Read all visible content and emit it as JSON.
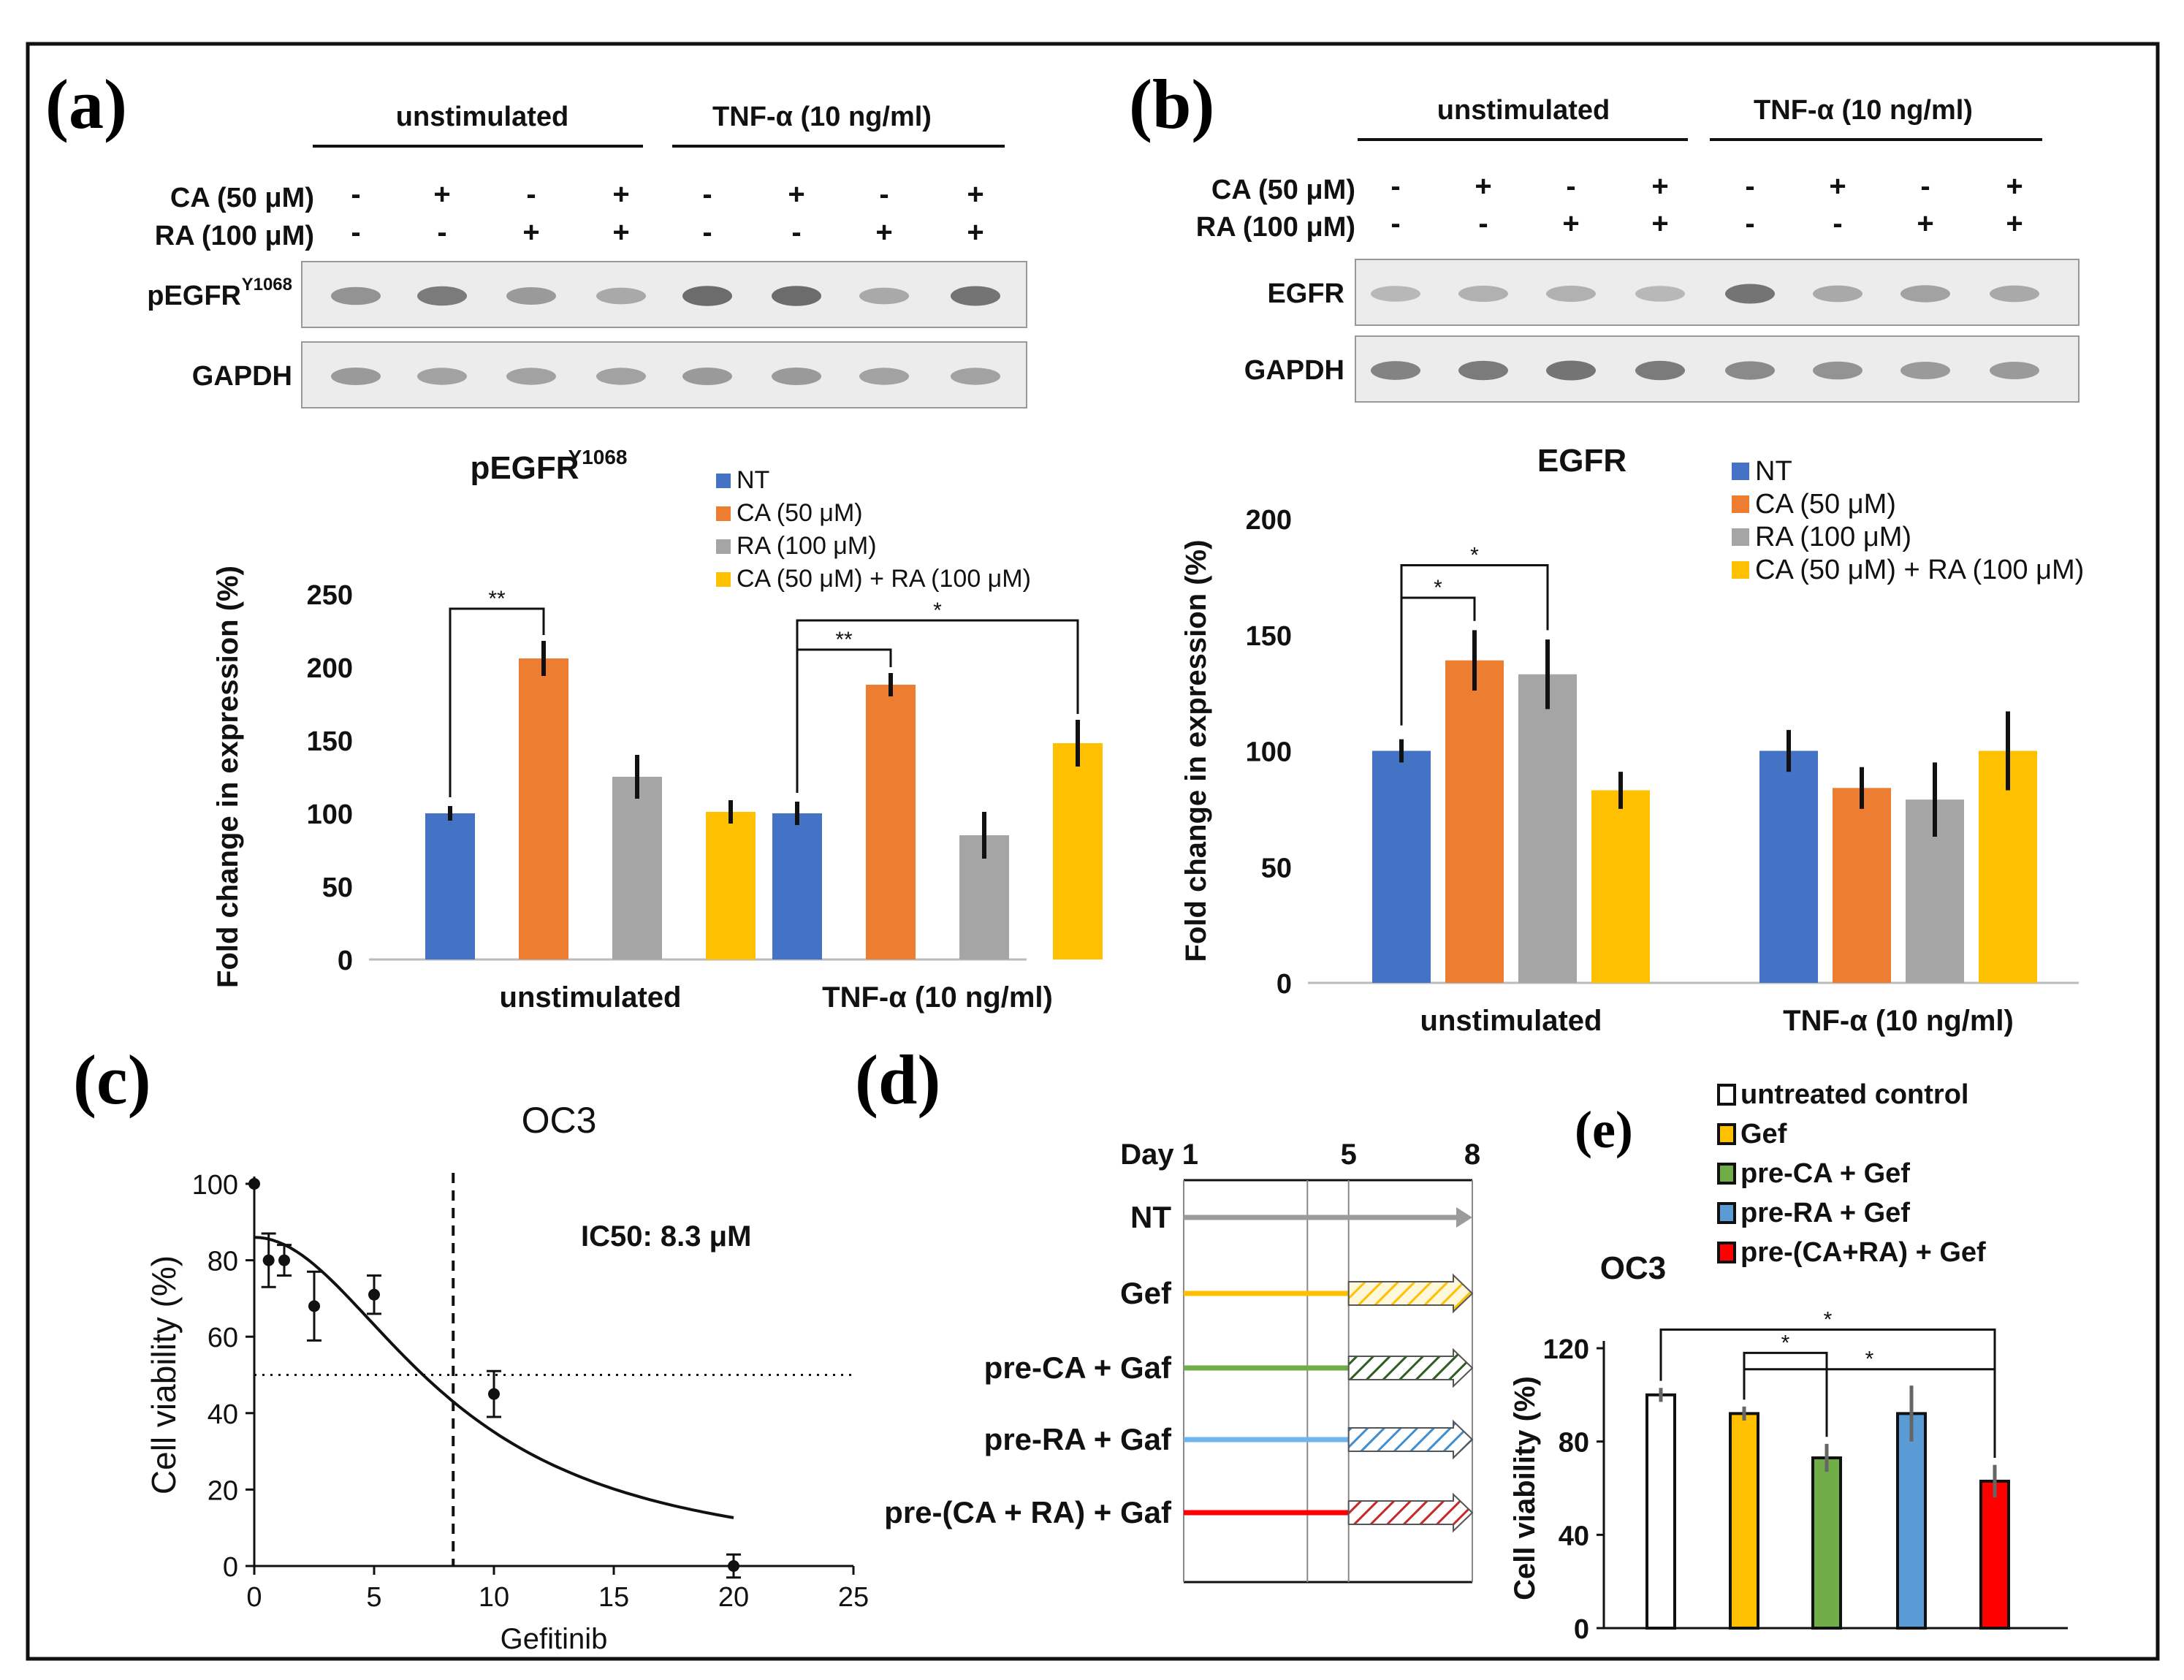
{
  "colors": {
    "NT": "#4472c4",
    "CA": "#ed7d31",
    "RA": "#a5a5a5",
    "CARA": "#ffc000",
    "timeline_NT": "#9b9b9b",
    "timeline_Gef": "#ffc000",
    "timeline_preCA": "#70ad47",
    "timeline_preRA": "#6fb6f0",
    "timeline_preCARA": "#ff0000",
    "e_untreated": "#ffffff",
    "e_gef": "#ffc000",
    "e_preCA": "#70ad47",
    "e_preRA": "#5b9bd5",
    "e_preCARA": "#ff0000"
  },
  "panel_a": {
    "label": "(a)",
    "groups": [
      "unstimulated",
      "TNF-α (10 ng/ml)"
    ],
    "treatments": [
      {
        "name": "CA (50 μM)",
        "signs": [
          "-",
          "+",
          "-",
          "+",
          "-",
          "+",
          "-",
          "+"
        ]
      },
      {
        "name": "RA (100 μM)",
        "signs": [
          "-",
          "-",
          "+",
          "+",
          "-",
          "-",
          "+",
          "+"
        ]
      }
    ],
    "blots": [
      {
        "name": "pEGFR",
        "sup": "Y1068",
        "intensities": [
          0.55,
          0.7,
          0.5,
          0.4,
          0.8,
          0.8,
          0.4,
          0.75
        ]
      },
      {
        "name": "GAPDH",
        "sup": "",
        "intensities": [
          0.5,
          0.45,
          0.45,
          0.45,
          0.5,
          0.5,
          0.45,
          0.45
        ]
      }
    ]
  },
  "panel_b": {
    "label": "(b)",
    "groups": [
      "unstimulated",
      "TNF-α (10 ng/ml)"
    ],
    "treatments": [
      {
        "name": "CA (50 μM)",
        "signs": [
          "-",
          "+",
          "-",
          "+",
          "-",
          "+",
          "-",
          "+"
        ]
      },
      {
        "name": "RA (100 μM)",
        "signs": [
          "-",
          "-",
          "+",
          "+",
          "-",
          "-",
          "+",
          "+"
        ]
      }
    ],
    "blots": [
      {
        "name": "EGFR",
        "sup": "",
        "intensities": [
          0.3,
          0.35,
          0.35,
          0.3,
          0.75,
          0.4,
          0.45,
          0.4
        ]
      },
      {
        "name": "GAPDH",
        "sup": "",
        "intensities": [
          0.65,
          0.7,
          0.75,
          0.7,
          0.6,
          0.55,
          0.5,
          0.5
        ]
      }
    ]
  },
  "legend_ab": [
    "NT",
    "CA (50 μM)",
    "RA (100 μM)",
    "CA (50 μM) + RA (100 μM)"
  ],
  "chart_data": [
    {
      "id": "a",
      "type": "bar",
      "title": "pEGFR",
      "title_sup": "Y1068",
      "ylabel": "Fold change in expression (%)",
      "xlabel": "",
      "categories": [
        "unstimulated",
        "TNF-α (10 ng/ml)"
      ],
      "ylim": [
        0,
        250
      ],
      "yticks": [
        0,
        50,
        100,
        150,
        200,
        250
      ],
      "series": [
        {
          "name": "NT",
          "values": [
            100,
            100
          ],
          "errors": [
            5,
            8
          ]
        },
        {
          "name": "CA (50 μM)",
          "values": [
            206,
            188
          ],
          "errors": [
            12,
            8
          ]
        },
        {
          "name": "RA (100 μM)",
          "values": [
            125,
            85
          ],
          "errors": [
            15,
            16
          ]
        },
        {
          "name": "CA (50 μM) + RA (100 μM)",
          "values": [
            101,
            148
          ],
          "errors": [
            8,
            16
          ]
        }
      ],
      "significance": [
        {
          "group": 0,
          "from": 0,
          "to": 1,
          "label": "**",
          "y": 240
        },
        {
          "group": 1,
          "from": 0,
          "to": 1,
          "label": "**",
          "y": 212
        },
        {
          "group": 1,
          "from": 0,
          "to": 3,
          "label": "*",
          "y": 232
        }
      ]
    },
    {
      "id": "b",
      "type": "bar",
      "title": "EGFR",
      "ylabel": "Fold change in expression (%)",
      "xlabel": "",
      "categories": [
        "unstimulated",
        "TNF-α (10 ng/ml)"
      ],
      "ylim": [
        0,
        200
      ],
      "yticks": [
        0,
        50,
        100,
        150,
        200
      ],
      "series": [
        {
          "name": "NT",
          "values": [
            100,
            100
          ],
          "errors": [
            5,
            9
          ]
        },
        {
          "name": "CA (50 μM)",
          "values": [
            139,
            84
          ],
          "errors": [
            13,
            9
          ]
        },
        {
          "name": "RA (100 μM)",
          "values": [
            133,
            79
          ],
          "errors": [
            15,
            16
          ]
        },
        {
          "name": "CA (50 μM) + RA (100 μM)",
          "values": [
            83,
            100
          ],
          "errors": [
            8,
            17
          ]
        }
      ],
      "significance": [
        {
          "group": 0,
          "from": 0,
          "to": 1,
          "label": "*",
          "y": 166
        },
        {
          "group": 0,
          "from": 0,
          "to": 2,
          "label": "*",
          "y": 180
        }
      ]
    },
    {
      "id": "c",
      "type": "scatter",
      "title": "OC3",
      "xlabel": "Gefitinib",
      "ylabel": "Cell viability (%)",
      "xlim": [
        0,
        25
      ],
      "ylim": [
        0,
        100
      ],
      "xticks": [
        0,
        5,
        10,
        15,
        20,
        25
      ],
      "yticks": [
        0,
        20,
        40,
        60,
        80,
        100
      ],
      "points": [
        {
          "x": 0,
          "y": 100,
          "err": 0
        },
        {
          "x": 0.6,
          "y": 80,
          "err": 7
        },
        {
          "x": 1.25,
          "y": 80,
          "err": 4
        },
        {
          "x": 2.5,
          "y": 68,
          "err": 9
        },
        {
          "x": 5,
          "y": 71,
          "err": 5
        },
        {
          "x": 10,
          "y": 45,
          "err": 6
        },
        {
          "x": 20,
          "y": 0,
          "err": 3
        }
      ],
      "fit": {
        "top": 86,
        "bottom": 0,
        "ic50": 8.3,
        "hill": 2.0,
        "x_end": 20
      },
      "ic50_line": 8.3,
      "half_line": 50,
      "annotation": "IC50: 8.3 μM"
    },
    {
      "id": "e",
      "type": "bar",
      "title": "OC3",
      "ylabel": "Cell viability (%)",
      "xlabel": "",
      "categories": [
        "untreated control",
        "Gef",
        "pre-CA + Gef",
        "pre-RA + Gef",
        "pre-(CA+RA) + Gef"
      ],
      "ylim": [
        0,
        120
      ],
      "yticks": [
        0,
        40,
        80,
        120
      ],
      "values": [
        100,
        92,
        73,
        92,
        63
      ],
      "errors": [
        3,
        3,
        6,
        12,
        7
      ],
      "significance": [
        {
          "from": 0,
          "to": 4,
          "label": "*",
          "y": 128
        },
        {
          "from": 1,
          "to": 2,
          "label": "*",
          "y": 118
        },
        {
          "from": 1,
          "to": 4,
          "label": "*",
          "y": 111
        }
      ]
    }
  ],
  "panel_c": {
    "label": "(c)"
  },
  "panel_d": {
    "label": "(d)",
    "day_labels": [
      "Day 1",
      "5",
      "8"
    ],
    "day_positions": [
      1,
      5,
      8
    ],
    "rows": [
      {
        "label": "NT",
        "color_key": "timeline_NT",
        "hatched": false
      },
      {
        "label": "Gef",
        "color_key": "timeline_Gef",
        "hatched": true
      },
      {
        "label": "pre-CA + Gaf",
        "color_key": "timeline_preCA",
        "hatched": true
      },
      {
        "label": "pre-RA + Gaf",
        "color_key": "timeline_preRA",
        "hatched": true
      },
      {
        "label": "pre-(CA + RA) + Gaf",
        "color_key": "timeline_preCARA",
        "hatched": true
      }
    ]
  },
  "panel_e": {
    "label": "(e)"
  }
}
